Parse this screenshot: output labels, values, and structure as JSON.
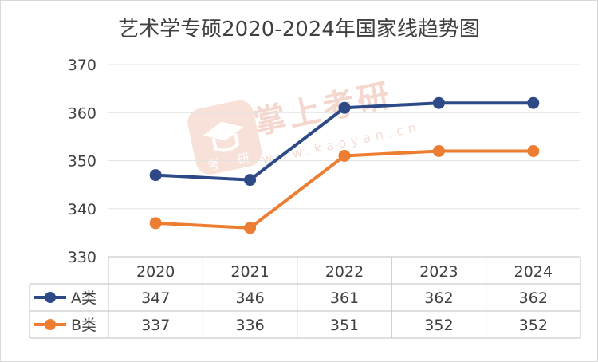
{
  "chart_data": {
    "type": "line",
    "title": "艺术学专硕2020-2024年国家线趋势图",
    "x": [
      "2020",
      "2021",
      "2022",
      "2023",
      "2024"
    ],
    "series": [
      {
        "name": "A类",
        "values": [
          347,
          346,
          361,
          362,
          362
        ],
        "color": "#2e4a86"
      },
      {
        "name": "B类",
        "values": [
          337,
          336,
          351,
          352,
          352
        ],
        "color": "#ed7d31"
      }
    ],
    "ylim": [
      330,
      370
    ],
    "yticks": [
      330,
      340,
      350,
      360,
      370
    ],
    "grid": true,
    "legend": "data-table-left"
  },
  "watermark": {
    "brand": "掌上考研",
    "url": "www.kaoyan.cn",
    "logo_chars": [
      "考",
      "研"
    ]
  }
}
